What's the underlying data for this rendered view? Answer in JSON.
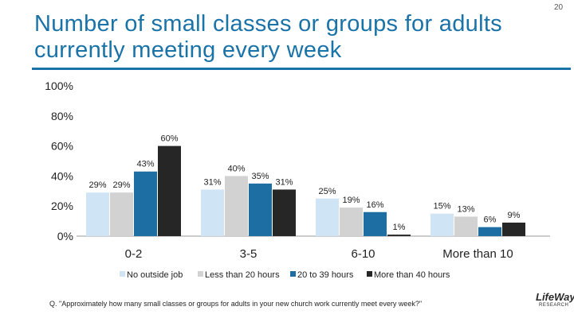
{
  "page": {
    "number": "20"
  },
  "title": "Number of small classes or groups for adults currently meeting every week",
  "footnote": "Q. \"Approximately how many small classes or groups for adults in your new church work currently meet every week?\"",
  "logo": {
    "name": "LifeWay",
    "sub": "RESEARCH"
  },
  "colors": {
    "title": "#1a73a8",
    "rule": "#1a73a8"
  },
  "chart_data": {
    "type": "bar",
    "title": "Number of small classes or groups for adults currently meeting every week",
    "categories": [
      "0-2",
      "3-5",
      "6-10",
      "More than 10"
    ],
    "series": [
      {
        "name": "No outside job",
        "color": "#cfe4f5",
        "values": [
          29,
          31,
          25,
          15
        ]
      },
      {
        "name": "Less than 20 hours",
        "color": "#d2d2d2",
        "values": [
          29,
          40,
          19,
          13
        ]
      },
      {
        "name": "20 to 39 hours",
        "color": "#1d6fa3",
        "values": [
          43,
          35,
          16,
          6
        ]
      },
      {
        "name": "More than 40 hours",
        "color": "#262626",
        "values": [
          60,
          31,
          1,
          9
        ]
      }
    ],
    "yticks": [
      "0%",
      "20%",
      "40%",
      "60%",
      "80%",
      "100%"
    ],
    "ylim": [
      0,
      100
    ],
    "legend_position": "bottom",
    "xlabel": "",
    "ylabel": ""
  }
}
